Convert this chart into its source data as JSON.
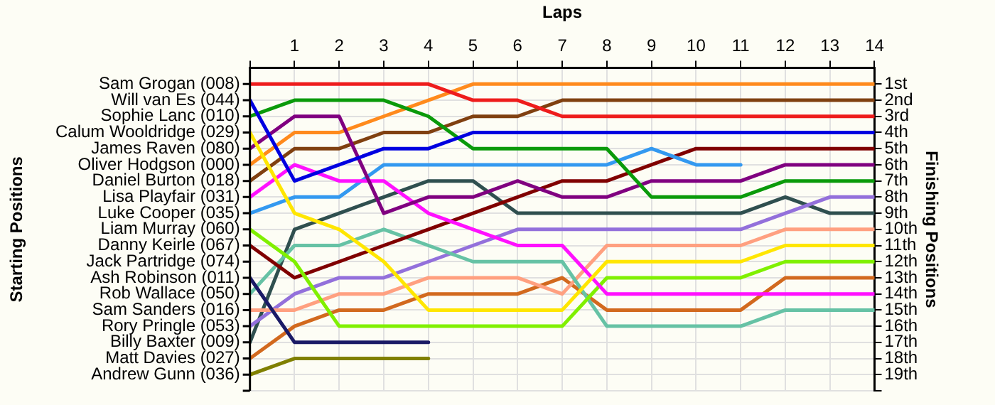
{
  "chart_data": {
    "type": "line",
    "xlabel": "Laps",
    "ylabel": "Finishing Positions",
    "grid": true,
    "legend": false,
    "x": [
      0,
      1,
      2,
      3,
      4,
      5,
      6,
      7,
      8,
      9,
      10,
      11,
      12,
      13,
      14
    ],
    "xlim": [
      0,
      14
    ],
    "xticks": [
      {
        "value": 0,
        "label": null
      },
      1,
      2,
      3,
      4,
      5,
      6,
      7,
      8,
      9,
      10,
      11,
      12,
      13,
      14
    ],
    "ylim": [
      20,
      0
    ],
    "yticks": [
      {
        "value": 1,
        "label": "1st"
      },
      {
        "value": 2,
        "label": "2nd"
      },
      {
        "value": 3,
        "label": "3rd"
      },
      {
        "value": 4,
        "label": "4th"
      },
      {
        "value": 5,
        "label": "5th"
      },
      {
        "value": 6,
        "label": "6th"
      },
      {
        "value": 7,
        "label": "7th"
      },
      {
        "value": 8,
        "label": "8th"
      },
      {
        "value": 9,
        "label": "9th"
      },
      {
        "value": 10,
        "label": "10th"
      },
      {
        "value": 11,
        "label": "11th"
      },
      {
        "value": 12,
        "label": "12th"
      },
      {
        "value": 13,
        "label": "13th"
      },
      {
        "value": 14,
        "label": "14th"
      },
      {
        "value": 15,
        "label": "15th"
      },
      {
        "value": 16,
        "label": "16th"
      },
      {
        "value": 17,
        "label": "17th"
      },
      {
        "value": 18,
        "label": "18th"
      },
      {
        "value": 19,
        "label": "19th"
      },
      {
        "value": 20,
        "label": null
      }
    ],
    "annotations": [
      "Starting Positions",
      "Sam Grogan (008)",
      "Will van Es (044)",
      "Sophie Lanc (010)",
      "Calum Wooldridge (029)",
      "James Raven (080)",
      "Oliver Hodgson (000)",
      "Daniel Burton (018)",
      "Lisa Playfair (031)",
      "Luke Cooper (035)",
      "Liam Murray (060)",
      "Danny Keirle (067)",
      "Jack Partridge (074)",
      "Ash Robinson (011)",
      "Rob Wallace (050)",
      "Sam Sanders (016)",
      "Rory Pringle (053)",
      "Billy Baxter (009)",
      "Matt Davies (027)",
      "Andrew Gunn (036)"
    ],
    "series": [
      {
        "color": "#ee1c1c",
        "values": [
          1,
          1,
          1,
          1,
          1,
          2,
          2,
          3,
          3,
          3,
          3,
          3,
          3,
          3,
          3
        ]
      },
      {
        "color": "#0000e0",
        "values": [
          2,
          7,
          6,
          5,
          5,
          4,
          4,
          4,
          4,
          4,
          4,
          4,
          4,
          4,
          4
        ]
      },
      {
        "color": "#0a9a0a",
        "values": [
          3,
          2,
          2,
          2,
          3,
          5,
          5,
          5,
          5,
          8,
          8,
          8,
          7,
          7,
          7
        ]
      },
      {
        "color": "#ffe600",
        "values": [
          4,
          9,
          10,
          12,
          15,
          15,
          15,
          15,
          12,
          12,
          12,
          12,
          11,
          11,
          11
        ]
      },
      {
        "color": "#800080",
        "values": [
          5,
          3,
          3,
          9,
          8,
          8,
          7,
          8,
          8,
          7,
          7,
          7,
          6,
          6,
          6
        ]
      },
      {
        "color": "#ff8a1c",
        "values": [
          6,
          4,
          4,
          3,
          2,
          1,
          1,
          1,
          1,
          1,
          1,
          1,
          1,
          1,
          1
        ]
      },
      {
        "color": "#804010",
        "values": [
          7,
          5,
          5,
          4,
          4,
          3,
          3,
          2,
          2,
          2,
          2,
          2,
          2,
          2,
          2
        ]
      },
      {
        "color": "#ff10ff",
        "values": [
          8,
          6,
          7,
          7,
          9,
          10,
          11,
          11,
          14,
          14,
          14,
          14,
          14,
          14,
          14
        ]
      },
      {
        "color": "#3399f0",
        "values": [
          9,
          8,
          8,
          6,
          6,
          6,
          6,
          6,
          6,
          5,
          6,
          6,
          null,
          null,
          null
        ]
      },
      {
        "color": "#80f000",
        "values": [
          10,
          12,
          16,
          16,
          16,
          16,
          16,
          16,
          13,
          13,
          13,
          13,
          12,
          12,
          12
        ]
      },
      {
        "color": "#800000",
        "values": [
          11,
          13,
          12,
          11,
          10,
          9,
          8,
          7,
          7,
          6,
          5,
          5,
          5,
          5,
          5
        ]
      },
      {
        "color": "#1a1a66",
        "values": [
          13,
          17,
          17,
          17,
          17,
          null,
          null,
          null,
          null,
          null,
          null,
          null,
          null,
          null,
          null
        ]
      },
      {
        "color": "#66c2a5",
        "values": [
          14,
          11,
          11,
          10,
          11,
          12,
          12,
          12,
          16,
          16,
          16,
          16,
          15,
          15,
          15
        ]
      },
      {
        "color": "#ffa080",
        "values": [
          15,
          15,
          14,
          14,
          13,
          13,
          13,
          14,
          11,
          11,
          11,
          11,
          10,
          10,
          10
        ]
      },
      {
        "color": "#9370db",
        "values": [
          16,
          14,
          13,
          13,
          12,
          11,
          10,
          10,
          10,
          10,
          10,
          10,
          9,
          8,
          8
        ]
      },
      {
        "color": "#2f4f4f",
        "values": [
          17,
          10,
          9,
          8,
          7,
          7,
          9,
          9,
          9,
          9,
          9,
          9,
          8,
          9,
          9
        ]
      },
      {
        "color": "#d2691e",
        "values": [
          18,
          16,
          15,
          15,
          14,
          14,
          14,
          13,
          15,
          15,
          15,
          15,
          13,
          13,
          13
        ]
      },
      {
        "color": "#808000",
        "values": [
          19,
          18,
          18,
          18,
          18,
          null,
          null,
          null,
          null,
          null,
          null,
          null,
          null,
          null,
          null
        ]
      }
    ]
  }
}
